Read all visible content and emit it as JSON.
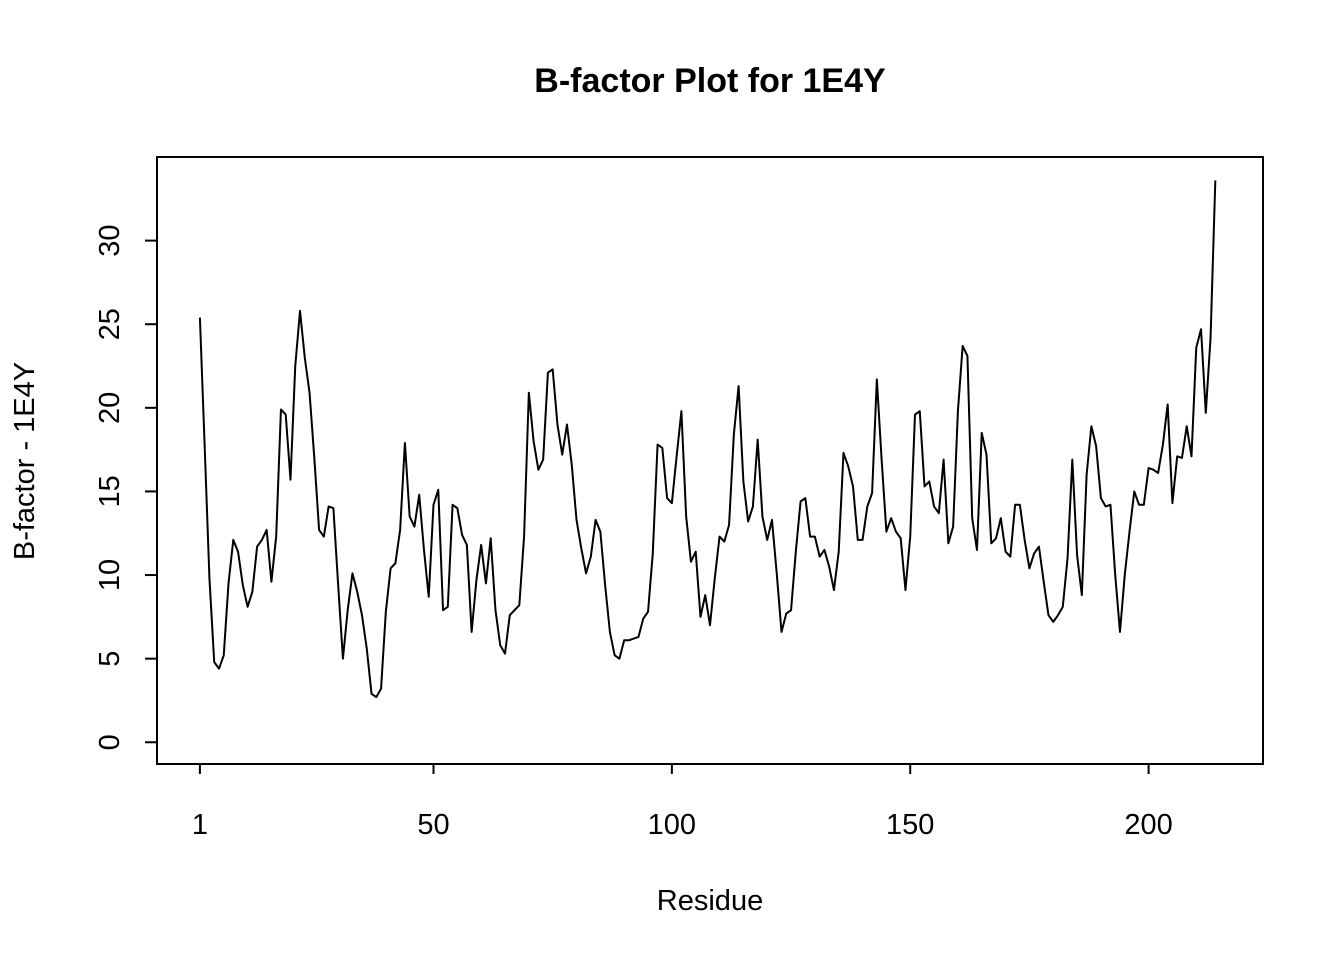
{
  "chart_data": {
    "type": "line",
    "title": "B-factor Plot for 1E4Y",
    "xlabel": "Residue",
    "ylabel": "B-factor - 1E4Y",
    "xlim": [
      -8,
      224
    ],
    "ylim": [
      -1.3,
      35.0
    ],
    "x_ticks": [
      1,
      50,
      100,
      150,
      200
    ],
    "x_tick_labels": [
      "1",
      "50",
      "100",
      "150",
      "200"
    ],
    "y_ticks": [
      0,
      5,
      10,
      15,
      20,
      25,
      30
    ],
    "y_tick_labels": [
      "0",
      "5",
      "10",
      "15",
      "20",
      "25",
      "30"
    ],
    "grid": false,
    "legend": "none",
    "line_color": "#000000",
    "series": [
      {
        "x_start": 1,
        "values": [
          25.4,
          17.7,
          9.8,
          4.8,
          4.4,
          5.2,
          9.5,
          12.1,
          11.4,
          9.4,
          8.1,
          9.0,
          11.7,
          12.1,
          12.7,
          9.6,
          12.3,
          19.9,
          19.6,
          15.7,
          22.5,
          25.8,
          23.0,
          20.9,
          17.0,
          12.7,
          12.3,
          14.1,
          14.0,
          9.4,
          5.0,
          7.9,
          10.1,
          9.0,
          7.6,
          5.6,
          2.9,
          2.7,
          3.2,
          7.8,
          10.4,
          10.7,
          12.7,
          17.9,
          13.5,
          12.9,
          14.8,
          11.5,
          8.7,
          14.2,
          15.1,
          7.9,
          8.1,
          14.2,
          14.0,
          12.4,
          11.8,
          6.6,
          9.7,
          11.8,
          9.5,
          12.2,
          7.9,
          5.8,
          5.3,
          7.6,
          7.9,
          8.2,
          12.3,
          20.9,
          18.0,
          16.3,
          16.9,
          22.1,
          22.3,
          19.0,
          17.2,
          19.0,
          16.6,
          13.3,
          11.6,
          10.1,
          11.1,
          13.3,
          12.6,
          9.4,
          6.6,
          5.2,
          5.0,
          6.1,
          6.1,
          6.2,
          6.3,
          7.4,
          7.8,
          11.3,
          17.8,
          17.6,
          14.6,
          14.3,
          17.1,
          19.8,
          13.5,
          10.8,
          11.4,
          7.5,
          8.8,
          7.0,
          9.8,
          12.3,
          12.0,
          13.0,
          18.4,
          21.3,
          15.6,
          13.2,
          14.1,
          18.1,
          13.5,
          12.1,
          13.3,
          10.1,
          6.6,
          7.7,
          7.9,
          11.4,
          14.4,
          14.6,
          12.3,
          12.3,
          11.1,
          11.5,
          10.5,
          9.1,
          11.4,
          17.3,
          16.5,
          15.3,
          12.1,
          12.1,
          14.1,
          14.9,
          21.7,
          16.9,
          12.6,
          13.4,
          12.6,
          12.2,
          9.1,
          12.3,
          19.6,
          19.8,
          15.3,
          15.6,
          14.1,
          13.7,
          16.9,
          11.9,
          12.9,
          19.8,
          23.7,
          23.1,
          13.4,
          11.5,
          18.5,
          17.2,
          11.9,
          12.2,
          13.4,
          11.4,
          11.1,
          14.2,
          14.2,
          12.1,
          10.4,
          11.3,
          11.7,
          9.6,
          7.6,
          7.2,
          7.6,
          8.1,
          11.0,
          16.9,
          11.2,
          8.8,
          16.0,
          18.9,
          17.7,
          14.6,
          14.1,
          14.2,
          10.0,
          6.6,
          10.0,
          12.6,
          15.0,
          14.2,
          14.2,
          16.4,
          16.3,
          16.1,
          17.8,
          20.2,
          14.3,
          17.1,
          17.0,
          18.9,
          17.1,
          23.6,
          24.7,
          19.7,
          24.2,
          33.6
        ]
      }
    ]
  }
}
